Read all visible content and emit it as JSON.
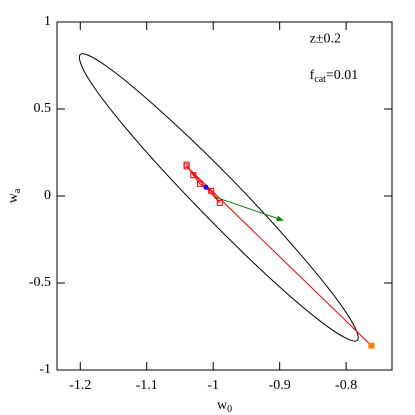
{
  "chart_data": {
    "type": "line",
    "x_label": {
      "base": "w",
      "sub": "0"
    },
    "y_label": {
      "base": "w",
      "sub": "a"
    },
    "annotations": [
      {
        "text": "z±0.2",
        "x": -0.855,
        "y": 0.9
      },
      {
        "base": "f",
        "sub": "cat",
        "rest": "=0.01",
        "x": -0.855,
        "y": 0.69
      }
    ],
    "xlim": [
      -1.235,
      -0.731
    ],
    "ylim": [
      -1,
      1
    ],
    "xticks": [
      -1.2,
      -1.1,
      -1,
      -0.9,
      -0.8
    ],
    "yticks": [
      -1,
      -0.5,
      0,
      0.5,
      1
    ],
    "series": [
      {
        "color": "#000000",
        "closed": true,
        "x": [
          -0.783,
          -0.799,
          -0.867,
          -0.968,
          -1.076,
          -1.161,
          -1.2,
          -1.185,
          -1.117,
          -1.015,
          -0.908,
          -0.823
        ],
        "values": [
          -0.83,
          -0.675,
          -0.343,
          0.08,
          0.478,
          0.747,
          0.813,
          0.658,
          0.325,
          -0.097,
          -0.495,
          -0.764
        ]
      },
      {
        "color": "#ff0000",
        "marker": "square-open",
        "x": [
          -1.04,
          -1.03,
          -1.02,
          -1.003,
          -0.99,
          -1.04
        ],
        "values": [
          0.18,
          0.12,
          0.07,
          0.03,
          -0.04,
          0.17
        ]
      },
      {
        "color": "#ff0000",
        "x": [
          -1.04,
          -0.762
        ],
        "values": [
          0.17,
          -0.86
        ]
      },
      {
        "color": "#008000",
        "arrow": true,
        "x": [
          -0.997,
          -0.895
        ],
        "values": [
          -0.006,
          -0.14
        ]
      },
      {
        "color": "#0000ff",
        "marker": "circle-filled",
        "x": [
          -1.011
        ],
        "values": [
          0.05
        ]
      },
      {
        "color": "#ff8000",
        "marker": "square-filled",
        "x": [
          -0.762
        ],
        "values": [
          -0.86
        ]
      }
    ]
  }
}
